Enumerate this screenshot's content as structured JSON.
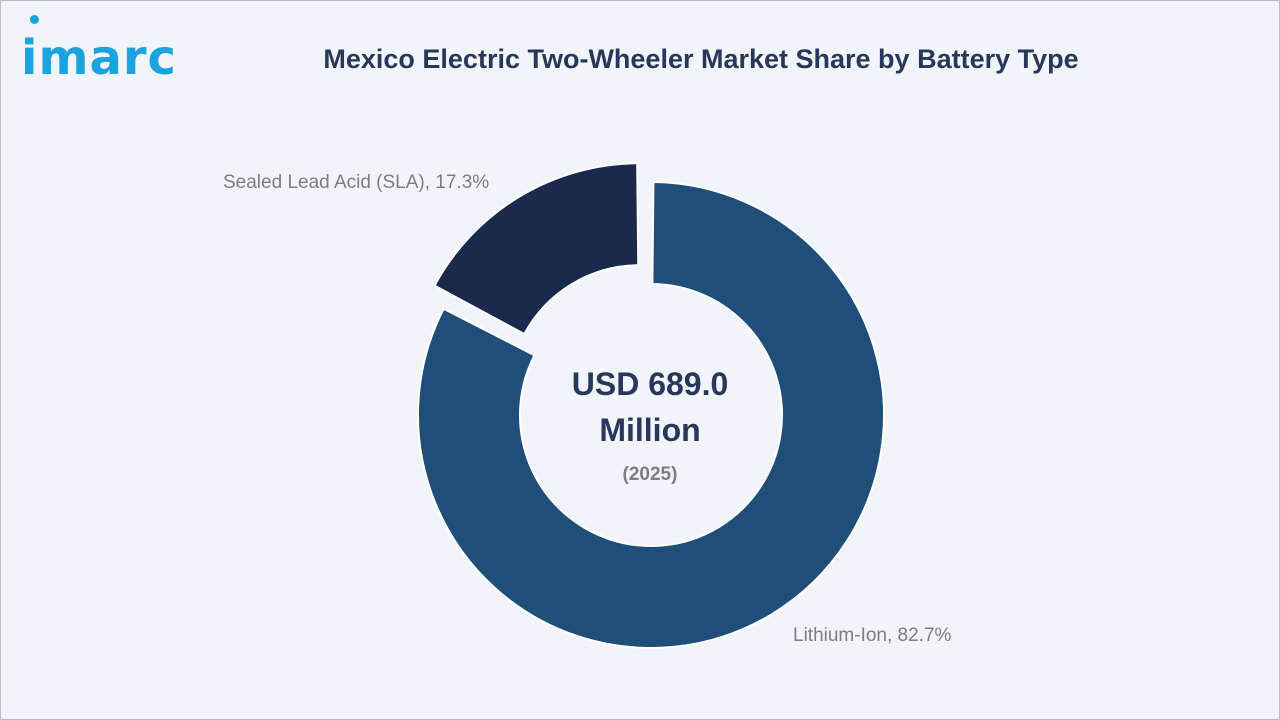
{
  "brand": {
    "logo_text": "imarc",
    "color": "#1aa3dc"
  },
  "chart_data": {
    "type": "pie",
    "variant": "donut",
    "title": "Mexico Electric Two-Wheeler Market Share by Battery Type",
    "center_value_line1": "USD 689.0",
    "center_value_line2": "Million",
    "center_year": "(2025)",
    "unit": "%",
    "slices": [
      {
        "name": "Lithium-Ion",
        "value": 82.7,
        "label": "Lithium-Ion, 82.7%",
        "color": "#1f4e79"
      },
      {
        "name": "Sealed Lead Acid (SLA)",
        "value": 17.3,
        "label": "Sealed Lead Acid (SLA), 17.3%",
        "color": "#1a2a4c",
        "exploded": true
      }
    ]
  }
}
